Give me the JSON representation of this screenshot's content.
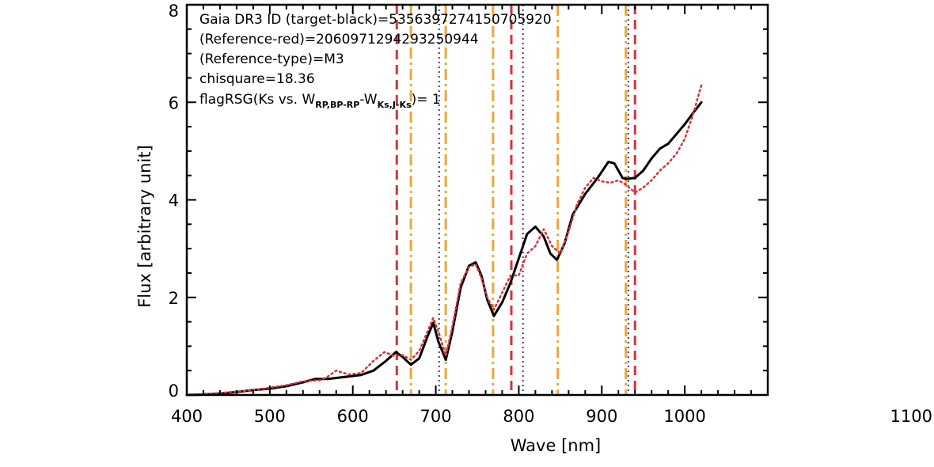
{
  "chart_data": {
    "type": "line",
    "title": "",
    "xlabel": "Wave [nm]",
    "ylabel": "Flux [arbitrary unit]",
    "xlim": [
      400,
      1100
    ],
    "ylim": [
      0,
      8
    ],
    "x_ticks": [
      400,
      500,
      600,
      700,
      800,
      900,
      1000,
      1100
    ],
    "x_tick_labels": [
      "400",
      "500",
      "600",
      "700",
      "800",
      "900",
      "1000",
      "1100"
    ],
    "y_ticks": [
      0,
      2,
      4,
      6,
      8
    ],
    "y_tick_labels": [
      "0",
      "2",
      "4",
      "6",
      "8"
    ],
    "grid": false,
    "legend": "none",
    "annotations": {
      "line1": "Gaia DR3 ID (target-black)=5356397274150705920",
      "line2": "(Reference-red)=2060971294293250944",
      "line3": "(Reference-type)=M3",
      "line4": "chisquare=18.36",
      "line5_prefix": "flagRSG(Ks vs. W",
      "line5_sub1": "RP,BP-RP",
      "line5_mid": "-W",
      "line5_sub2": "Ks,J-Ks",
      "line5_suffix": ")= 1"
    },
    "series": [
      {
        "color": "#000000",
        "style": "solid",
        "x": [
          400,
          420,
          440,
          460,
          480,
          500,
          520,
          540,
          555,
          570,
          590,
          610,
          625,
          640,
          652,
          660,
          670,
          680,
          690,
          697,
          703,
          712,
          720,
          730,
          740,
          748,
          755,
          762,
          770,
          780,
          790,
          800,
          810,
          820,
          830,
          838,
          846,
          855,
          865,
          880,
          895,
          908,
          915,
          920,
          925,
          930,
          940,
          950,
          960,
          970,
          980,
          990,
          1000,
          1010,
          1020
        ],
        "y": [
          0.0,
          0.01,
          0.03,
          0.06,
          0.1,
          0.13,
          0.18,
          0.26,
          0.33,
          0.33,
          0.37,
          0.41,
          0.5,
          0.7,
          0.88,
          0.78,
          0.62,
          0.75,
          1.2,
          1.48,
          1.1,
          0.72,
          1.3,
          2.2,
          2.65,
          2.72,
          2.45,
          1.95,
          1.62,
          1.9,
          2.3,
          2.8,
          3.3,
          3.45,
          3.25,
          2.9,
          2.77,
          3.1,
          3.7,
          4.12,
          4.45,
          4.78,
          4.75,
          4.6,
          4.45,
          4.43,
          4.45,
          4.6,
          4.85,
          5.05,
          5.15,
          5.35,
          5.55,
          5.78,
          6.0
        ]
      },
      {
        "color": "#d6333d",
        "style": "dotted",
        "x": [
          400,
          420,
          440,
          460,
          480,
          500,
          520,
          540,
          560,
          570,
          580,
          595,
          610,
          625,
          638,
          650,
          660,
          670,
          680,
          690,
          697,
          705,
          712,
          720,
          730,
          740,
          748,
          755,
          762,
          770,
          780,
          790,
          800,
          810,
          820,
          830,
          840,
          850,
          860,
          870,
          880,
          890,
          900,
          910,
          920,
          930,
          940,
          950,
          960,
          970,
          980,
          990,
          1000,
          1010,
          1020
        ],
        "y": [
          0.0,
          0.02,
          0.04,
          0.07,
          0.1,
          0.15,
          0.2,
          0.28,
          0.3,
          0.38,
          0.5,
          0.42,
          0.45,
          0.7,
          0.88,
          0.8,
          0.82,
          0.72,
          0.9,
          1.3,
          1.58,
          1.2,
          0.8,
          1.4,
          2.3,
          2.62,
          2.68,
          2.4,
          2.0,
          1.75,
          2.1,
          2.45,
          2.45,
          2.9,
          3.05,
          3.4,
          3.05,
          2.9,
          3.35,
          3.9,
          4.25,
          4.45,
          4.38,
          4.35,
          4.4,
          4.3,
          4.15,
          4.25,
          4.4,
          4.6,
          4.75,
          4.95,
          5.25,
          5.75,
          6.35
        ]
      }
    ],
    "vertical_lines": [
      {
        "x": 653,
        "color": "#d6333d",
        "style": "dashed"
      },
      {
        "x": 670,
        "color": "#e8a83a",
        "style": "dashdot"
      },
      {
        "x": 704,
        "color": "#3a3a8a",
        "style": "dotted"
      },
      {
        "x": 712,
        "color": "#e8a83a",
        "style": "dashdot"
      },
      {
        "x": 769,
        "color": "#e8a83a",
        "style": "dashdot"
      },
      {
        "x": 791,
        "color": "#d6333d",
        "style": "dashed"
      },
      {
        "x": 805,
        "color": "#3a3a8a",
        "style": "dotted"
      },
      {
        "x": 847,
        "color": "#e8a83a",
        "style": "dashdot"
      },
      {
        "x": 929,
        "color": "#e8a83a",
        "style": "dashdot"
      },
      {
        "x": 932,
        "color": "#3a3a8a",
        "style": "dotted"
      },
      {
        "x": 940,
        "color": "#d6333d",
        "style": "dashed"
      }
    ]
  }
}
